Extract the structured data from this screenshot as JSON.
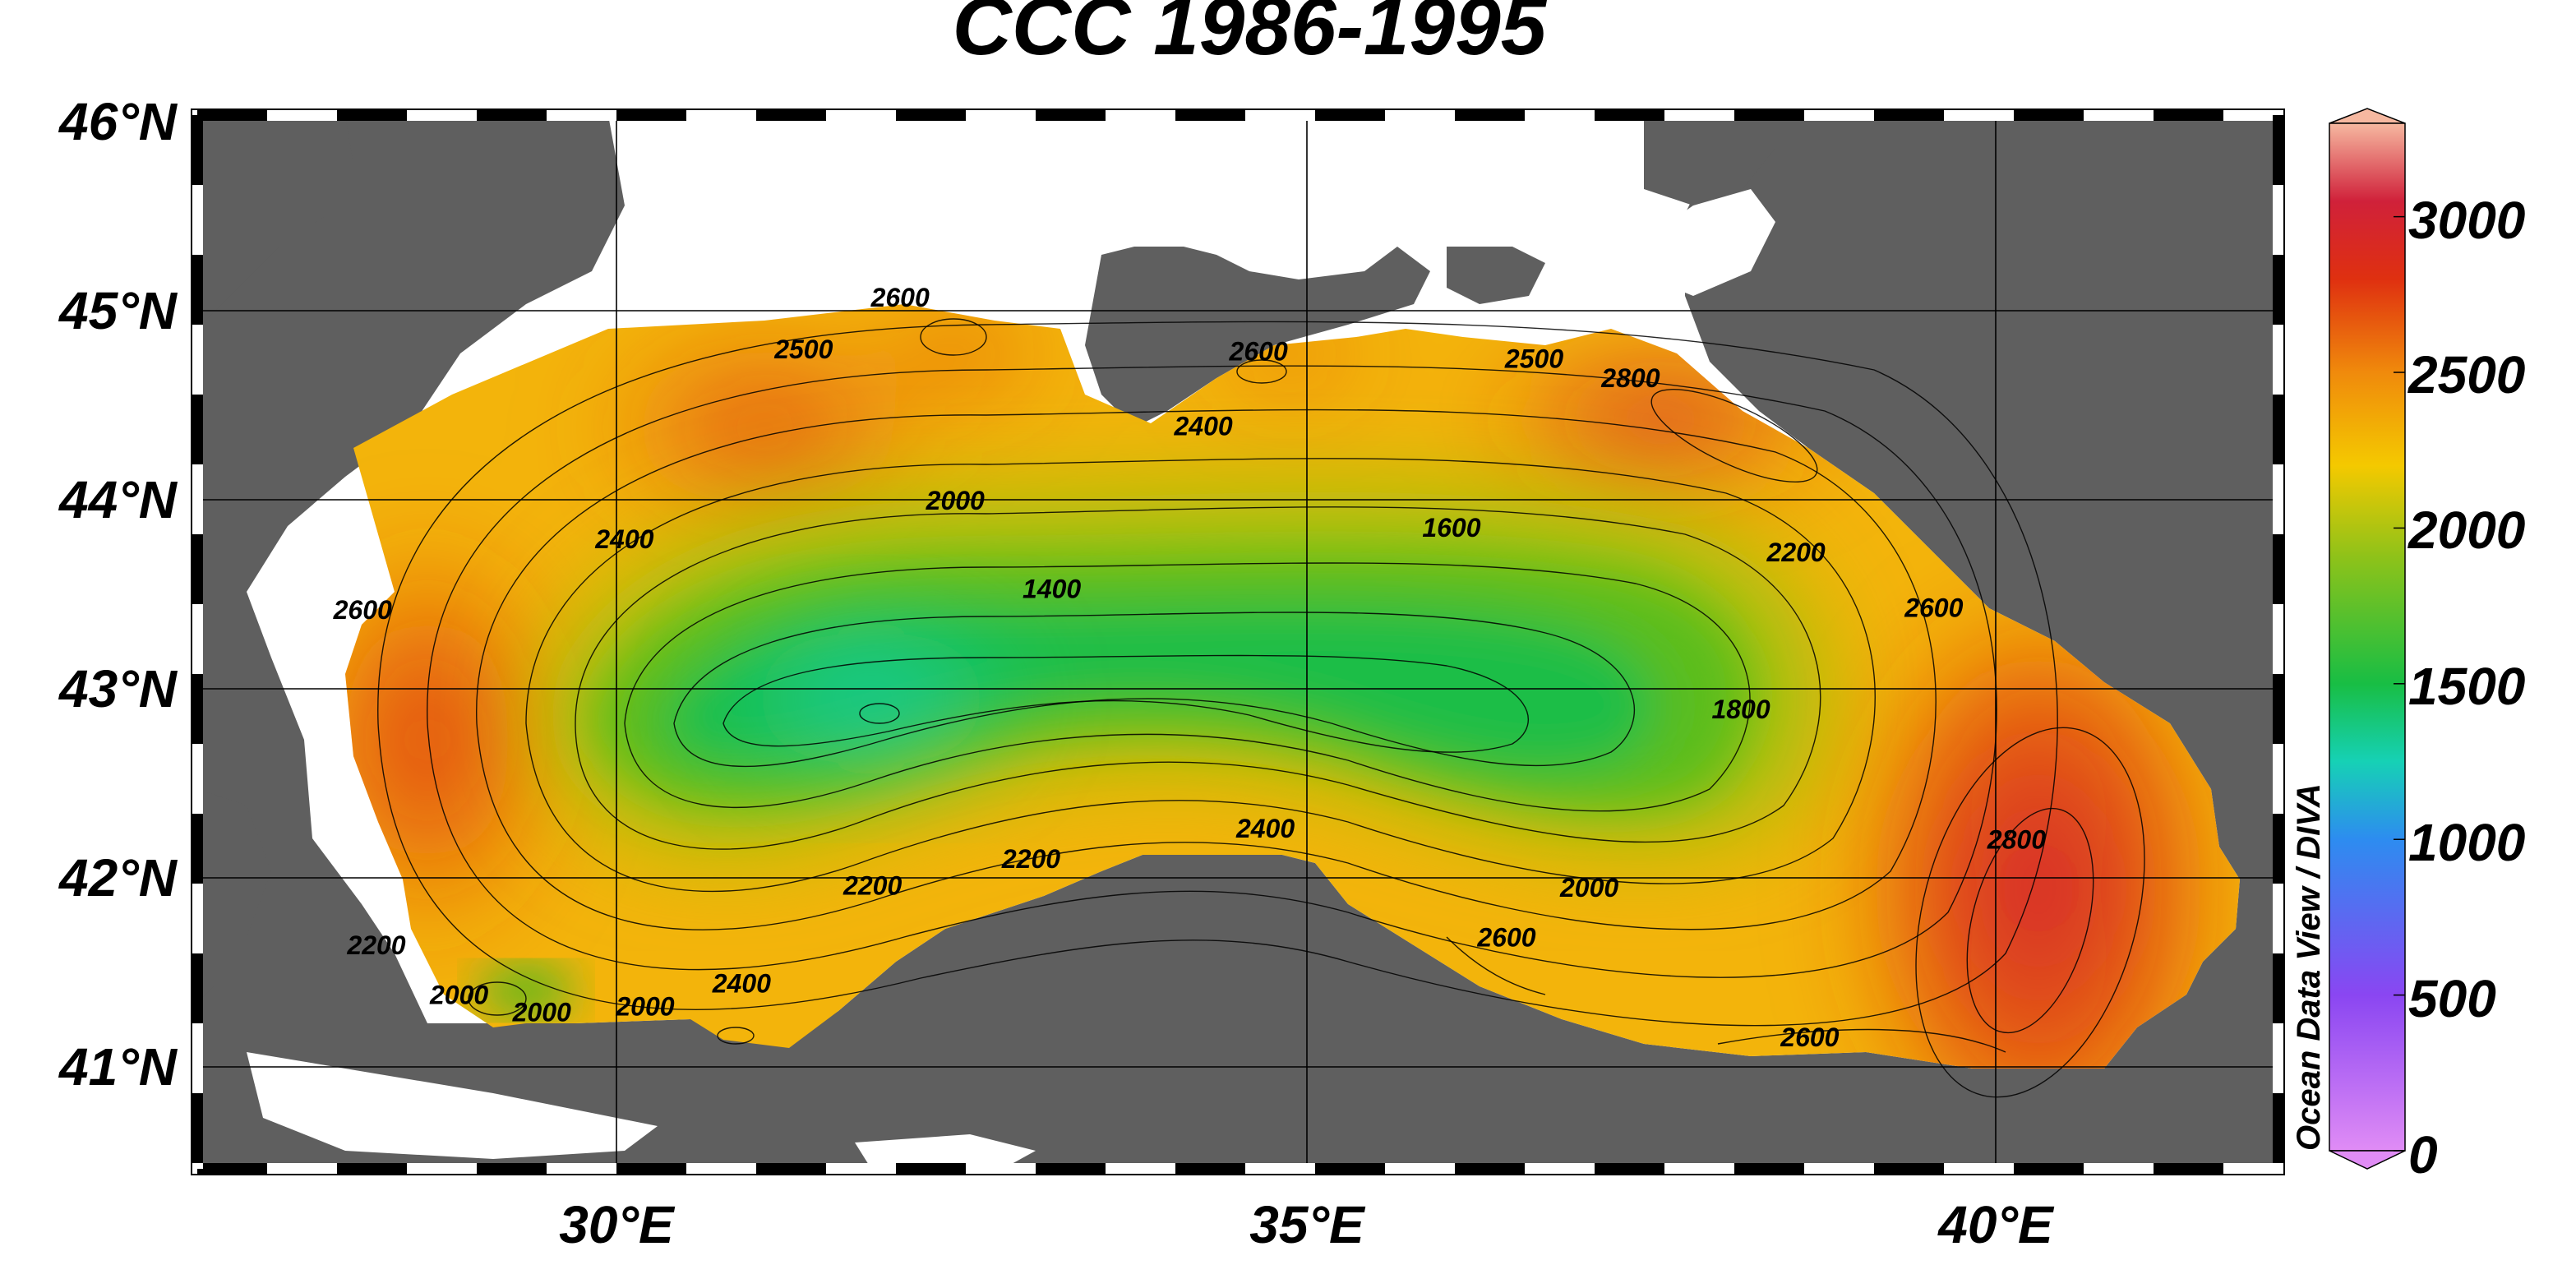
{
  "map": {
    "title": "CCC 1986-1995",
    "lat_labels": [
      "46°N",
      "45°N",
      "44°N",
      "43°N",
      "42°N",
      "41°N"
    ],
    "lon_labels": [
      "30°E",
      "35°E",
      "40°E"
    ],
    "lat_range": [
      40.5,
      46.0
    ],
    "lon_range": [
      27.0,
      42.1
    ],
    "land_color": "#5f5f5f",
    "nodata_color": "#ffffff"
  },
  "colorbar": {
    "title": "Ocean Data View / DIVA",
    "tick_labels": [
      "3000",
      "2500",
      "2000",
      "1500",
      "1000",
      "500",
      "0"
    ],
    "range": [
      0,
      3300
    ],
    "stops": [
      {
        "v": 0,
        "c": "#e08cf5"
      },
      {
        "v": 500,
        "c": "#8a46f2"
      },
      {
        "v": 1000,
        "c": "#2d8cf0"
      },
      {
        "v": 1250,
        "c": "#16d1b5"
      },
      {
        "v": 1500,
        "c": "#18be44"
      },
      {
        "v": 1900,
        "c": "#8cc21a"
      },
      {
        "v": 2200,
        "c": "#f4c900"
      },
      {
        "v": 2500,
        "c": "#f08a0c"
      },
      {
        "v": 2800,
        "c": "#df3010"
      },
      {
        "v": 3050,
        "c": "#d0213a"
      },
      {
        "v": 3300,
        "c": "#f6b8a0"
      }
    ]
  },
  "contour_labels": [
    {
      "text": "2600",
      "lon": 32.1,
      "lat": 45.0
    },
    {
      "text": "2500",
      "lon": 31.4,
      "lat": 44.73
    },
    {
      "text": "2600",
      "lon": 34.7,
      "lat": 44.72
    },
    {
      "text": "2400",
      "lon": 34.3,
      "lat": 44.33
    },
    {
      "text": "2500",
      "lon": 36.7,
      "lat": 44.68
    },
    {
      "text": "2800",
      "lon": 37.4,
      "lat": 44.58
    },
    {
      "text": "2000",
      "lon": 32.5,
      "lat": 43.94
    },
    {
      "text": "2400",
      "lon": 30.1,
      "lat": 43.74
    },
    {
      "text": "1600",
      "lon": 36.1,
      "lat": 43.8
    },
    {
      "text": "2200",
      "lon": 38.6,
      "lat": 43.67
    },
    {
      "text": "2600",
      "lon": 39.6,
      "lat": 43.38
    },
    {
      "text": "1400",
      "lon": 33.2,
      "lat": 43.48
    },
    {
      "text": "2600",
      "lon": 28.2,
      "lat": 43.37
    },
    {
      "text": "1800",
      "lon": 38.2,
      "lat": 42.85
    },
    {
      "text": "2400",
      "lon": 34.75,
      "lat": 42.23
    },
    {
      "text": "2200",
      "lon": 33.05,
      "lat": 42.07
    },
    {
      "text": "2200",
      "lon": 31.9,
      "lat": 41.93
    },
    {
      "text": "2000",
      "lon": 37.1,
      "lat": 41.92
    },
    {
      "text": "2800",
      "lon": 40.2,
      "lat": 42.17
    },
    {
      "text": "2600",
      "lon": 36.5,
      "lat": 41.66
    },
    {
      "text": "2600",
      "lon": 38.7,
      "lat": 41.14
    },
    {
      "text": "2200",
      "lon": 28.3,
      "lat": 41.62
    },
    {
      "text": "2400",
      "lon": 30.95,
      "lat": 41.42
    },
    {
      "text": "2000",
      "lon": 29.5,
      "lat": 41.27
    },
    {
      "text": "2000",
      "lon": 28.9,
      "lat": 41.36
    },
    {
      "text": "2000",
      "lon": 30.25,
      "lat": 41.3
    }
  ]
}
